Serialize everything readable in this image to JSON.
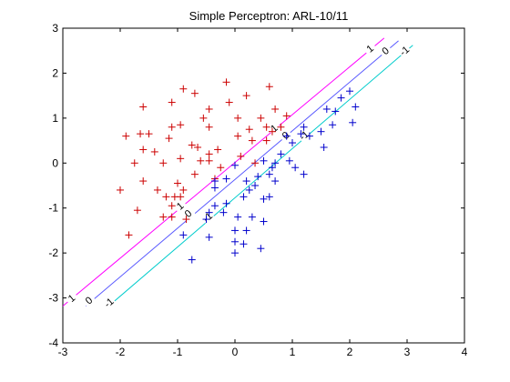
{
  "chart_data": {
    "type": "scatter",
    "title": "Simple Perceptron: ARL-10/11",
    "xlabel": "",
    "ylabel": "",
    "xlim": [
      -3,
      4
    ],
    "ylim": [
      -4,
      3
    ],
    "x_ticks": [
      -3,
      -2,
      -1,
      0,
      1,
      2,
      3,
      4
    ],
    "y_ticks": [
      -4,
      -3,
      -2,
      -1,
      0,
      1,
      2,
      3
    ],
    "grid": false,
    "series": [
      {
        "marker": "+",
        "color": "#cc0000",
        "points": [
          [
            -1.9,
            0.6
          ],
          [
            -1.6,
            1.25
          ],
          [
            -1.65,
            0.65
          ],
          [
            -1.5,
            0.65
          ],
          [
            -1.6,
            0.3
          ],
          [
            -1.75,
            0.0
          ],
          [
            -1.6,
            -0.4
          ],
          [
            -2.0,
            -0.6
          ],
          [
            -1.7,
            -1.05
          ],
          [
            -1.85,
            -1.6
          ],
          [
            -1.4,
            0.25
          ],
          [
            -1.25,
            0.0
          ],
          [
            -1.35,
            -0.6
          ],
          [
            -1.2,
            -0.75
          ],
          [
            -1.25,
            -1.2
          ],
          [
            -1.1,
            -0.95
          ],
          [
            -1.1,
            -1.2
          ],
          [
            -1.15,
            0.55
          ],
          [
            -1.1,
            0.8
          ],
          [
            -1.1,
            1.35
          ],
          [
            -0.9,
            1.65
          ],
          [
            -0.95,
            0.85
          ],
          [
            -0.95,
            0.1
          ],
          [
            -1.0,
            -0.45
          ],
          [
            -0.9,
            -0.6
          ],
          [
            -0.95,
            -0.75
          ],
          [
            -0.7,
            1.55
          ],
          [
            -0.75,
            0.4
          ],
          [
            -0.65,
            0.35
          ],
          [
            -0.6,
            0.05
          ],
          [
            -0.7,
            -0.25
          ],
          [
            -0.55,
            1.0
          ],
          [
            -0.45,
            0.8
          ],
          [
            -0.45,
            1.2
          ],
          [
            -0.45,
            0.2
          ],
          [
            -0.45,
            0.05
          ],
          [
            -0.35,
            -0.35
          ],
          [
            -0.3,
            0.3
          ],
          [
            -0.15,
            1.8
          ],
          [
            -0.25,
            -0.1
          ],
          [
            -0.1,
            1.35
          ],
          [
            0.05,
            1.0
          ],
          [
            0.05,
            0.6
          ],
          [
            0.2,
            1.5
          ],
          [
            0.25,
            0.75
          ],
          [
            0.3,
            0.5
          ],
          [
            0.35,
            0.0
          ],
          [
            0.45,
            1.0
          ],
          [
            0.55,
            0.8
          ],
          [
            0.55,
            0.5
          ],
          [
            0.65,
            0.7
          ],
          [
            0.6,
            1.7
          ],
          [
            0.7,
            1.2
          ],
          [
            0.8,
            0.8
          ],
          [
            0.9,
            1.05
          ],
          [
            -1.05,
            -0.75
          ],
          [
            -0.85,
            -1.25
          ],
          [
            0.1,
            0.15
          ]
        ]
      },
      {
        "marker": "+",
        "color": "#0000cc",
        "points": [
          [
            1.85,
            1.45
          ],
          [
            2.0,
            1.6
          ],
          [
            1.6,
            1.2
          ],
          [
            1.75,
            1.15
          ],
          [
            2.1,
            1.25
          ],
          [
            1.7,
            0.85
          ],
          [
            2.05,
            0.9
          ],
          [
            1.5,
            0.7
          ],
          [
            1.3,
            0.6
          ],
          [
            1.55,
            0.35
          ],
          [
            1.2,
            0.8
          ],
          [
            1.15,
            0.65
          ],
          [
            1.0,
            0.45
          ],
          [
            0.95,
            0.05
          ],
          [
            0.9,
            0.6
          ],
          [
            0.8,
            0.2
          ],
          [
            1.05,
            -0.1
          ],
          [
            1.2,
            -0.25
          ],
          [
            0.7,
            0.0
          ],
          [
            0.65,
            -0.1
          ],
          [
            0.6,
            -0.25
          ],
          [
            0.5,
            0.05
          ],
          [
            0.7,
            -0.4
          ],
          [
            0.4,
            -0.3
          ],
          [
            0.35,
            -0.5
          ],
          [
            0.5,
            -0.8
          ],
          [
            0.6,
            -0.75
          ],
          [
            0.25,
            -0.6
          ],
          [
            0.15,
            -0.75
          ],
          [
            0.2,
            -0.4
          ],
          [
            0.0,
            -0.05
          ],
          [
            -0.15,
            -0.35
          ],
          [
            -0.15,
            -0.9
          ],
          [
            -0.2,
            -1.1
          ],
          [
            -0.35,
            -0.55
          ],
          [
            -0.35,
            -0.95
          ],
          [
            -0.45,
            -1.1
          ],
          [
            -0.5,
            -1.25
          ],
          [
            -0.45,
            -1.65
          ],
          [
            0.05,
            -1.2
          ],
          [
            0.3,
            -1.2
          ],
          [
            0.5,
            -1.3
          ],
          [
            0.2,
            -1.5
          ],
          [
            0.0,
            -1.5
          ],
          [
            0.0,
            -1.75
          ],
          [
            0.15,
            -1.8
          ],
          [
            0.45,
            -1.9
          ],
          [
            0.0,
            -2.0
          ],
          [
            -0.9,
            -1.6
          ],
          [
            -0.75,
            -2.15
          ],
          [
            -0.35,
            -0.4
          ]
        ]
      }
    ],
    "lines": [
      {
        "color": "#ff00ff",
        "x": [
          -3.0,
          2.6
        ],
        "y": [
          -3.18,
          2.78
        ],
        "labels": [
          {
            "text": "1",
            "x": -2.85,
            "y": -3.0
          },
          {
            "text": "1",
            "x": -0.96,
            "y": -0.95
          },
          {
            "text": "1",
            "x": 0.68,
            "y": 0.78
          },
          {
            "text": "1",
            "x": 2.35,
            "y": 2.55
          }
        ]
      },
      {
        "color": "#5858ff",
        "x": [
          -2.6,
          2.85
        ],
        "y": [
          -3.18,
          2.72
        ],
        "labels": [
          {
            "text": "0",
            "x": -2.55,
            "y": -3.05
          },
          {
            "text": "0",
            "x": -0.82,
            "y": -1.12
          },
          {
            "text": "0",
            "x": 0.88,
            "y": 0.62
          },
          {
            "text": "0",
            "x": 2.62,
            "y": 2.5
          }
        ]
      },
      {
        "color": "#00cccc",
        "x": [
          -2.2,
          3.1
        ],
        "y": [
          -3.18,
          2.62
        ],
        "labels": [
          {
            "text": "-1",
            "x": -2.2,
            "y": -3.1
          },
          {
            "text": "-1",
            "x": -0.48,
            "y": -1.2
          },
          {
            "text": "-1",
            "x": 1.2,
            "y": 0.62
          },
          {
            "text": "-1",
            "x": 2.95,
            "y": 2.5
          }
        ]
      }
    ]
  }
}
